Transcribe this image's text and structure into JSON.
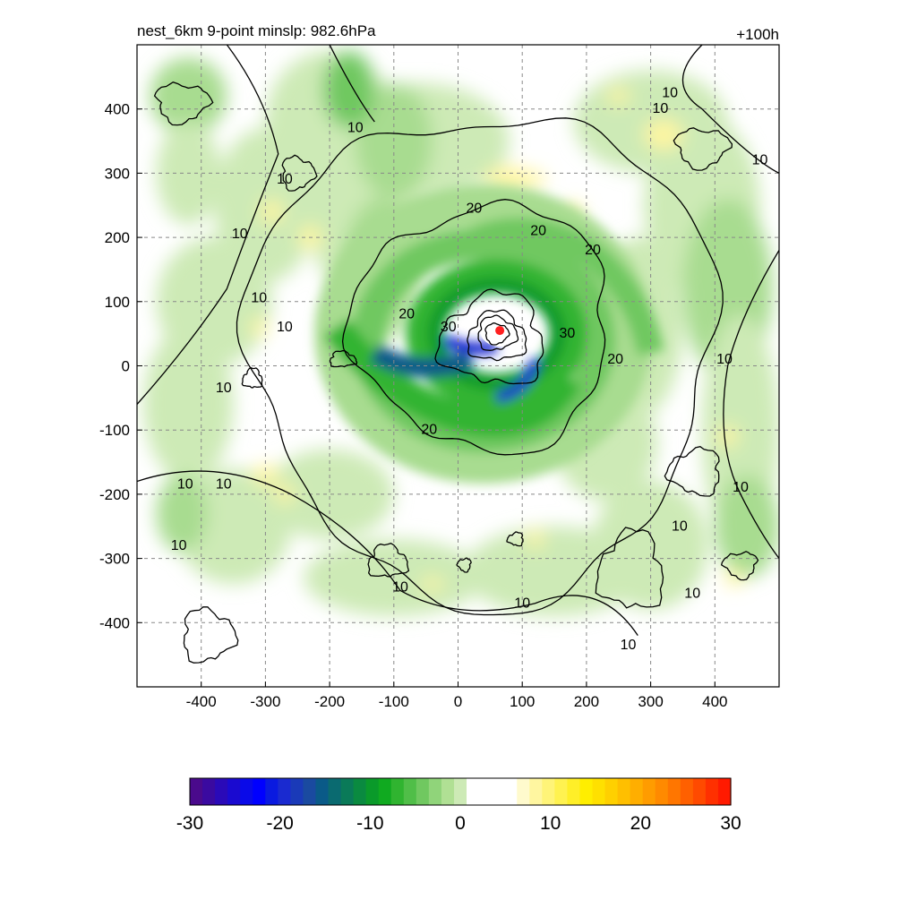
{
  "chart_data": {
    "type": "heatmap",
    "title_left": "nest_6km  9-point minslp: 982.6hPa",
    "title_right": "+100h",
    "xlabel": "",
    "ylabel": "",
    "xlim": [
      -500,
      500
    ],
    "ylim": [
      -500,
      500
    ],
    "x_ticks": [
      -400,
      -300,
      -200,
      -100,
      0,
      100,
      200,
      300,
      400
    ],
    "y_ticks": [
      400,
      300,
      200,
      100,
      0,
      -100,
      -200,
      -300,
      -400
    ],
    "grid": true,
    "grid_style": "dashed",
    "storm_center": {
      "x": 65,
      "y": 55,
      "color": "#ff2020"
    },
    "shaded_field": {
      "description_units": "none printed",
      "features": [
        {
          "kind": "eyewall_band",
          "cx": 65,
          "cy": 50,
          "rx": 115,
          "ry": 90,
          "value": -18
        },
        {
          "kind": "spiral_band_inner",
          "value": -12
        },
        {
          "kind": "spiral_band_outer",
          "value": -6
        }
      ]
    },
    "contour_labels": [
      {
        "text": "10",
        "x": -160,
        "y": 370
      },
      {
        "text": "10",
        "x": -270,
        "y": 290
      },
      {
        "text": "10",
        "x": -340,
        "y": 205
      },
      {
        "text": "10",
        "x": -310,
        "y": 105
      },
      {
        "text": "10",
        "x": -270,
        "y": 60
      },
      {
        "text": "10",
        "x": -365,
        "y": -35
      },
      {
        "text": "10",
        "x": -425,
        "y": -185
      },
      {
        "text": "10",
        "x": -365,
        "y": -185
      },
      {
        "text": "10",
        "x": -435,
        "y": -280
      },
      {
        "text": "10",
        "x": -90,
        "y": -345
      },
      {
        "text": "10",
        "x": 100,
        "y": -370
      },
      {
        "text": "10",
        "x": 265,
        "y": -435
      },
      {
        "text": "10",
        "x": 345,
        "y": -250
      },
      {
        "text": "10",
        "x": 365,
        "y": -355
      },
      {
        "text": "10",
        "x": 440,
        "y": -190
      },
      {
        "text": "10",
        "x": 415,
        "y": 10
      },
      {
        "text": "10",
        "x": 470,
        "y": 320
      },
      {
        "text": "10",
        "x": 330,
        "y": 425
      },
      {
        "text": "10",
        "x": 315,
        "y": 400
      },
      {
        "text": "20",
        "x": 25,
        "y": 245
      },
      {
        "text": "20",
        "x": 125,
        "y": 210
      },
      {
        "text": "20",
        "x": 210,
        "y": 180
      },
      {
        "text": "20",
        "x": -80,
        "y": 80
      },
      {
        "text": "20",
        "x": 245,
        "y": 10
      },
      {
        "text": "20",
        "x": -45,
        "y": -100
      },
      {
        "text": "30",
        "x": -15,
        "y": 60
      },
      {
        "text": "30",
        "x": 170,
        "y": 50
      }
    ],
    "colorbar": {
      "min": -30,
      "max": 30,
      "tick_labels": [
        "-30",
        "-20",
        "-10",
        "0",
        "10",
        "20",
        "30"
      ],
      "colors": [
        "#4a0a8c",
        "#3a0aa0",
        "#2a0ab8",
        "#1a0ad0",
        "#0a0ae8",
        "#0000ff",
        "#0a1ae0",
        "#1a2ad0",
        "#1a3ab8",
        "#1a4aa0",
        "#0a5a88",
        "#0a6a70",
        "#0a7a58",
        "#0a8a40",
        "#0a9a2a",
        "#10aa20",
        "#30b430",
        "#50be48",
        "#70c860",
        "#90d47a",
        "#b0e094",
        "#cdeab6",
        "#ffffff",
        "#ffffff",
        "#ffffff",
        "#ffffff",
        "#fffacd",
        "#fff6a0",
        "#fff478",
        "#fff250",
        "#ffef28",
        "#ffee00",
        "#ffe000",
        "#ffd000",
        "#ffbf00",
        "#ffae00",
        "#ff9c00",
        "#ff8a00",
        "#ff7600",
        "#ff6000",
        "#ff4a00",
        "#ff3000",
        "#ff1a00"
      ]
    }
  }
}
